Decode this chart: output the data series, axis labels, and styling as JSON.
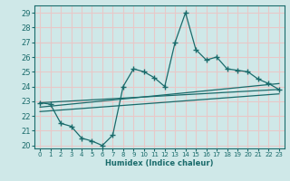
{
  "xlabel": "Humidex (Indice chaleur)",
  "bg_color": "#cfe8e8",
  "grid_color": "#e8c8c8",
  "line_color": "#1a6b6b",
  "xlim": [
    -0.5,
    23.5
  ],
  "ylim": [
    19.8,
    29.5
  ],
  "yticks": [
    20,
    21,
    22,
    23,
    24,
    25,
    26,
    27,
    28,
    29
  ],
  "xticks": [
    0,
    1,
    2,
    3,
    4,
    5,
    6,
    7,
    8,
    9,
    10,
    11,
    12,
    13,
    14,
    15,
    16,
    17,
    18,
    19,
    20,
    21,
    22,
    23
  ],
  "main_line_x": [
    0,
    1,
    2,
    3,
    4,
    5,
    6,
    7,
    8,
    9,
    10,
    11,
    12,
    13,
    14,
    15,
    16,
    17,
    18,
    19,
    20,
    21,
    22,
    23
  ],
  "main_line_y": [
    22.9,
    22.8,
    21.5,
    21.3,
    20.5,
    20.3,
    20.0,
    20.7,
    24.0,
    25.2,
    25.0,
    24.6,
    24.0,
    27.0,
    29.0,
    26.5,
    25.8,
    26.0,
    25.2,
    25.1,
    25.0,
    24.5,
    24.2,
    23.8
  ],
  "line2_x": [
    0,
    23
  ],
  "line2_y": [
    22.9,
    23.8
  ],
  "line3_x": [
    0,
    23
  ],
  "line3_y": [
    22.6,
    24.2
  ],
  "line4_x": [
    0,
    23
  ],
  "line4_y": [
    22.3,
    23.5
  ]
}
